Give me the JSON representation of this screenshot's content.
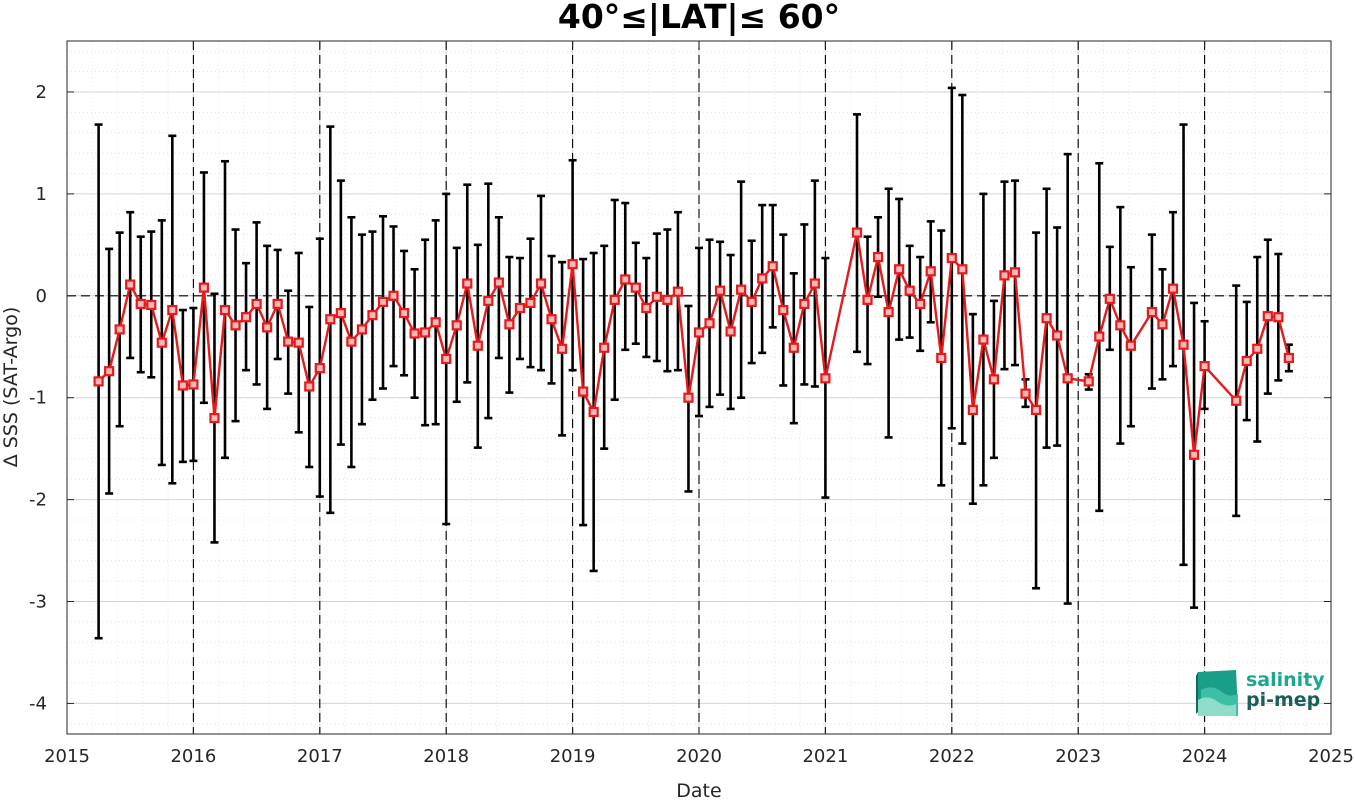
{
  "chart_data": {
    "type": "line",
    "title": "40°≤|LAT|≤ 60°",
    "xlabel": "Date",
    "ylabel": "Δ SSS (SAT-Argo)",
    "xlim": [
      "2015-01-01",
      "2025-01-01"
    ],
    "ylim": [
      -4.3,
      2.5
    ],
    "x_ticks": [
      "2015",
      "2016",
      "2017",
      "2018",
      "2019",
      "2020",
      "2021",
      "2022",
      "2023",
      "2024",
      "2025"
    ],
    "y_ticks": [
      "-4",
      "-3",
      "-2",
      "-1",
      "0",
      "1",
      "2"
    ],
    "grid": true,
    "year_boundaries": [
      "2016",
      "2017",
      "2018",
      "2019",
      "2020",
      "2021",
      "2022",
      "2023",
      "2024"
    ],
    "zero_line": 0,
    "series": [
      {
        "color": "#e41a1c",
        "marker": "square",
        "error_bar_color": "#000000",
        "points": [
          {
            "x": "2015-04",
            "y": -0.84,
            "lo": -3.36,
            "hi": 1.68
          },
          {
            "x": "2015-05",
            "y": -0.74,
            "lo": -1.94,
            "hi": 0.46
          },
          {
            "x": "2015-06",
            "y": -0.33,
            "lo": -1.28,
            "hi": 0.62
          },
          {
            "x": "2015-07",
            "y": 0.11,
            "lo": -0.61,
            "hi": 0.82
          },
          {
            "x": "2015-08",
            "y": -0.08,
            "lo": -0.75,
            "hi": 0.58
          },
          {
            "x": "2015-09",
            "y": -0.09,
            "lo": -0.8,
            "hi": 0.63
          },
          {
            "x": "2015-10",
            "y": -0.46,
            "lo": -1.66,
            "hi": 0.74
          },
          {
            "x": "2015-11",
            "y": -0.14,
            "lo": -1.84,
            "hi": 1.57
          },
          {
            "x": "2015-12",
            "y": -0.88,
            "lo": -1.63,
            "hi": -0.14
          },
          {
            "x": "2016-01",
            "y": -0.87,
            "lo": -1.62,
            "hi": -0.12
          },
          {
            "x": "2016-02",
            "y": 0.08,
            "lo": -1.05,
            "hi": 1.21
          },
          {
            "x": "2016-03",
            "y": -1.2,
            "lo": -2.42,
            "hi": 0.02
          },
          {
            "x": "2016-04",
            "y": -0.14,
            "lo": -1.59,
            "hi": 1.32
          },
          {
            "x": "2016-05",
            "y": -0.29,
            "lo": -1.23,
            "hi": 0.65
          },
          {
            "x": "2016-06",
            "y": -0.21,
            "lo": -0.73,
            "hi": 0.32
          },
          {
            "x": "2016-07",
            "y": -0.08,
            "lo": -0.87,
            "hi": 0.72
          },
          {
            "x": "2016-08",
            "y": -0.31,
            "lo": -1.11,
            "hi": 0.49
          },
          {
            "x": "2016-09",
            "y": -0.08,
            "lo": -0.62,
            "hi": 0.45
          },
          {
            "x": "2016-10",
            "y": -0.45,
            "lo": -0.96,
            "hi": 0.05
          },
          {
            "x": "2016-11",
            "y": -0.46,
            "lo": -1.34,
            "hi": 0.42
          },
          {
            "x": "2016-12",
            "y": -0.89,
            "lo": -1.68,
            "hi": -0.11
          },
          {
            "x": "2017-01",
            "y": -0.71,
            "lo": -1.97,
            "hi": 0.56
          },
          {
            "x": "2017-02",
            "y": -0.23,
            "lo": -2.13,
            "hi": 1.66
          },
          {
            "x": "2017-03",
            "y": -0.17,
            "lo": -1.46,
            "hi": 1.13
          },
          {
            "x": "2017-04",
            "y": -0.45,
            "lo": -1.68,
            "hi": 0.77
          },
          {
            "x": "2017-05",
            "y": -0.33,
            "lo": -1.26,
            "hi": 0.6
          },
          {
            "x": "2017-06",
            "y": -0.19,
            "lo": -1.02,
            "hi": 0.63
          },
          {
            "x": "2017-07",
            "y": -0.06,
            "lo": -0.91,
            "hi": 0.78
          },
          {
            "x": "2017-08",
            "y": 0.0,
            "lo": -0.69,
            "hi": 0.68
          },
          {
            "x": "2017-09",
            "y": -0.17,
            "lo": -0.78,
            "hi": 0.44
          },
          {
            "x": "2017-10",
            "y": -0.37,
            "lo": -1.0,
            "hi": 0.26
          },
          {
            "x": "2017-11",
            "y": -0.36,
            "lo": -1.27,
            "hi": 0.55
          },
          {
            "x": "2017-12",
            "y": -0.26,
            "lo": -1.26,
            "hi": 0.74
          },
          {
            "x": "2018-01",
            "y": -0.62,
            "lo": -2.24,
            "hi": 1.0
          },
          {
            "x": "2018-02",
            "y": -0.29,
            "lo": -1.04,
            "hi": 0.47
          },
          {
            "x": "2018-03",
            "y": 0.12,
            "lo": -0.85,
            "hi": 1.09
          },
          {
            "x": "2018-04",
            "y": -0.49,
            "lo": -1.49,
            "hi": 0.5
          },
          {
            "x": "2018-05",
            "y": -0.05,
            "lo": -1.2,
            "hi": 1.1
          },
          {
            "x": "2018-06",
            "y": 0.13,
            "lo": -0.61,
            "hi": 0.77
          },
          {
            "x": "2018-07",
            "y": -0.28,
            "lo": -0.95,
            "hi": 0.38
          },
          {
            "x": "2018-08",
            "y": -0.12,
            "lo": -0.62,
            "hi": 0.37
          },
          {
            "x": "2018-09",
            "y": -0.07,
            "lo": -0.7,
            "hi": 0.56
          },
          {
            "x": "2018-10",
            "y": 0.12,
            "lo": -0.73,
            "hi": 0.98
          },
          {
            "x": "2018-11",
            "y": -0.23,
            "lo": -0.86,
            "hi": 0.39
          },
          {
            "x": "2018-12",
            "y": -0.52,
            "lo": -1.37,
            "hi": 0.33
          },
          {
            "x": "2019-01",
            "y": 0.31,
            "lo": -0.73,
            "hi": 1.33
          },
          {
            "x": "2019-02",
            "y": -0.94,
            "lo": -2.25,
            "hi": 0.36
          },
          {
            "x": "2019-03",
            "y": -1.14,
            "lo": -2.7,
            "hi": 0.42
          },
          {
            "x": "2019-04",
            "y": -0.51,
            "lo": -1.5,
            "hi": 0.49
          },
          {
            "x": "2019-05",
            "y": -0.04,
            "lo": -1.02,
            "hi": 0.94
          },
          {
            "x": "2019-06",
            "y": 0.16,
            "lo": -0.53,
            "hi": 0.91
          },
          {
            "x": "2019-07",
            "y": 0.08,
            "lo": -0.47,
            "hi": 0.52
          },
          {
            "x": "2019-08",
            "y": -0.12,
            "lo": -0.6,
            "hi": 0.37
          },
          {
            "x": "2019-09",
            "y": -0.01,
            "lo": -0.64,
            "hi": 0.61
          },
          {
            "x": "2019-10",
            "y": -0.04,
            "lo": -0.74,
            "hi": 0.65
          },
          {
            "x": "2019-11",
            "y": 0.04,
            "lo": -0.73,
            "hi": 0.82
          },
          {
            "x": "2019-12",
            "y": -1.0,
            "lo": -1.92,
            "hi": -0.1
          },
          {
            "x": "2020-01",
            "y": -0.36,
            "lo": -1.18,
            "hi": 0.47
          },
          {
            "x": "2020-02",
            "y": -0.27,
            "lo": -1.09,
            "hi": 0.55
          },
          {
            "x": "2020-03",
            "y": 0.05,
            "lo": -0.97,
            "hi": 0.53
          },
          {
            "x": "2020-04",
            "y": -0.35,
            "lo": -1.11,
            "hi": 0.4
          },
          {
            "x": "2020-05",
            "y": 0.06,
            "lo": -1.0,
            "hi": 1.12
          },
          {
            "x": "2020-06",
            "y": -0.06,
            "lo": -0.66,
            "hi": 0.54
          },
          {
            "x": "2020-07",
            "y": 0.17,
            "lo": -0.56,
            "hi": 0.89
          },
          {
            "x": "2020-08",
            "y": 0.29,
            "lo": -0.31,
            "hi": 0.89
          },
          {
            "x": "2020-09",
            "y": -0.14,
            "lo": -0.88,
            "hi": 0.6
          },
          {
            "x": "2020-10",
            "y": -0.51,
            "lo": -1.25,
            "hi": 0.22
          },
          {
            "x": "2020-11",
            "y": -0.08,
            "lo": -0.87,
            "hi": 0.7
          },
          {
            "x": "2020-12",
            "y": 0.12,
            "lo": -0.89,
            "hi": 1.13
          },
          {
            "x": "2021-01",
            "y": -0.81,
            "lo": -1.98,
            "hi": 0.37
          },
          {
            "x": "2021-04",
            "y": 0.62,
            "lo": -0.55,
            "hi": 1.78
          },
          {
            "x": "2021-05",
            "y": -0.04,
            "lo": -0.67,
            "hi": 0.58
          },
          {
            "x": "2021-06",
            "y": 0.38,
            "lo": -0.01,
            "hi": 0.77
          },
          {
            "x": "2021-07",
            "y": -0.16,
            "lo": -1.39,
            "hi": 1.05
          },
          {
            "x": "2021-08",
            "y": 0.26,
            "lo": -0.43,
            "hi": 0.95
          },
          {
            "x": "2021-09",
            "y": 0.05,
            "lo": -0.41,
            "hi": 0.49
          },
          {
            "x": "2021-10",
            "y": -0.08,
            "lo": -0.54,
            "hi": 0.38
          },
          {
            "x": "2021-11",
            "y": 0.24,
            "lo": -0.26,
            "hi": 0.73
          },
          {
            "x": "2021-12",
            "y": -0.61,
            "lo": -1.86,
            "hi": 0.64
          },
          {
            "x": "2022-01",
            "y": 0.37,
            "lo": -1.3,
            "hi": 2.04
          },
          {
            "x": "2022-02",
            "y": 0.26,
            "lo": -1.45,
            "hi": 1.97
          },
          {
            "x": "2022-03",
            "y": -1.12,
            "lo": -2.04,
            "hi": -0.18
          },
          {
            "x": "2022-04",
            "y": -0.43,
            "lo": -1.86,
            "hi": 1.0
          },
          {
            "x": "2022-05",
            "y": -0.82,
            "lo": -1.59,
            "hi": -0.05
          },
          {
            "x": "2022-06",
            "y": 0.2,
            "lo": -0.72,
            "hi": 1.12
          },
          {
            "x": "2022-07",
            "y": 0.23,
            "lo": -0.68,
            "hi": 1.13
          },
          {
            "x": "2022-08",
            "y": -0.96,
            "lo": -1.09,
            "hi": -0.82
          },
          {
            "x": "2022-09",
            "y": -1.12,
            "lo": -2.87,
            "hi": 0.62
          },
          {
            "x": "2022-10",
            "y": -0.22,
            "lo": -1.49,
            "hi": 1.05
          },
          {
            "x": "2022-11",
            "y": -0.39,
            "lo": -1.47,
            "hi": 0.67
          },
          {
            "x": "2022-12",
            "y": -0.81,
            "lo": -3.02,
            "hi": 1.39
          },
          {
            "x": "2023-02",
            "y": -0.84,
            "lo": -0.92,
            "hi": -0.77
          },
          {
            "x": "2023-03",
            "y": -0.4,
            "lo": -2.11,
            "hi": 1.3
          },
          {
            "x": "2023-04",
            "y": -0.03,
            "lo": -0.53,
            "hi": 0.48
          },
          {
            "x": "2023-05",
            "y": -0.29,
            "lo": -1.45,
            "hi": 0.87
          },
          {
            "x": "2023-06",
            "y": -0.49,
            "lo": -1.28,
            "hi": 0.28
          },
          {
            "x": "2023-08",
            "y": -0.16,
            "lo": -0.91,
            "hi": 0.6
          },
          {
            "x": "2023-09",
            "y": -0.28,
            "lo": -0.82,
            "hi": 0.26
          },
          {
            "x": "2023-10",
            "y": 0.07,
            "lo": -0.69,
            "hi": 0.82
          },
          {
            "x": "2023-11",
            "y": -0.48,
            "lo": -2.64,
            "hi": 1.68
          },
          {
            "x": "2023-12",
            "y": -1.56,
            "lo": -3.06,
            "hi": -0.07
          },
          {
            "x": "2024-01",
            "y": -0.69,
            "lo": -1.11,
            "hi": -0.25
          },
          {
            "x": "2024-04",
            "y": -1.03,
            "lo": -2.16,
            "hi": 0.1
          },
          {
            "x": "2024-05",
            "y": -0.64,
            "lo": -1.22,
            "hi": -0.06
          },
          {
            "x": "2024-06",
            "y": -0.52,
            "lo": -1.43,
            "hi": 0.38
          },
          {
            "x": "2024-07",
            "y": -0.2,
            "lo": -0.96,
            "hi": 0.55
          },
          {
            "x": "2024-08",
            "y": -0.21,
            "lo": -0.83,
            "hi": 0.41
          },
          {
            "x": "2024-09",
            "y": -0.61,
            "lo": -0.74,
            "hi": -0.48
          }
        ]
      }
    ]
  },
  "logo": {
    "line1": "salinity",
    "line2": "pi-mep",
    "color1": "#1aa98f",
    "color2": "#1c5e5a"
  }
}
